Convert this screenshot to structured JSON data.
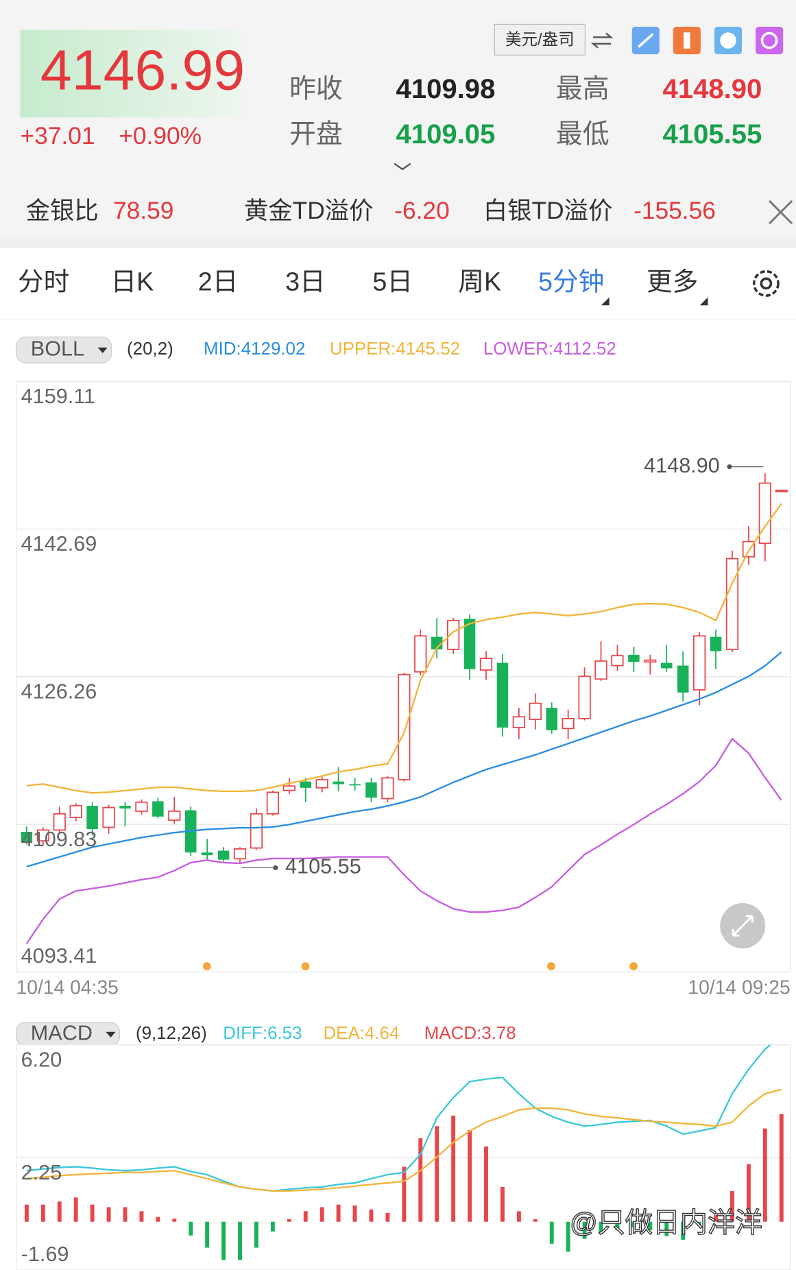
{
  "header": {
    "price": "4146.99",
    "change": "+37.01",
    "change_pct": "+0.90%",
    "unit": "美元/盎司",
    "stats": [
      {
        "label": "昨收",
        "value": "4109.98"
      },
      {
        "label": "最高",
        "value": "4148.90"
      },
      {
        "label": "开盘",
        "value": "4109.05"
      },
      {
        "label": "最低",
        "value": "4105.55"
      }
    ]
  },
  "ratios": [
    {
      "label": "金银比",
      "value": "78.59"
    },
    {
      "label": "黄金TD溢价",
      "value": "-6.20"
    },
    {
      "label": "白银TD溢价",
      "value": "-155.56"
    }
  ],
  "tabs": [
    "分时",
    "日K",
    "2日",
    "3日",
    "5日",
    "周K",
    "5分钟",
    "更多"
  ],
  "watermark": "@只做日内洋洋",
  "chart_data": [
    {
      "type": "candlestick",
      "indicator": "BOLL",
      "params": "(20,2)",
      "categories": [
        "10/14 04:35",
        null,
        null,
        null,
        null,
        null,
        null,
        null,
        null,
        null,
        null,
        null,
        null,
        null,
        null,
        null,
        null,
        null,
        null,
        null,
        null,
        null,
        null,
        null,
        null,
        null,
        null,
        null,
        null,
        null,
        null,
        null,
        null,
        null,
        null,
        null,
        null,
        null,
        null,
        null,
        null,
        null,
        null,
        null,
        null,
        null,
        "10/14 09:25"
      ],
      "ylim": [
        4093.41,
        4159.11
      ],
      "yticks": [
        4159.11,
        4142.69,
        4126.26,
        4109.83,
        4093.41
      ],
      "grid": true,
      "up_color": "#e8464a",
      "down_color": "#19b25a",
      "open": [
        4109.0,
        4108.0,
        4109.2,
        4110.6,
        4111.9,
        4109.5,
        4111.9,
        4111.3,
        4112.4,
        4110.3,
        4111.4,
        4106.7,
        4106.9,
        4106.0,
        4107.2,
        4111.0,
        4113.6,
        4114.6,
        4113.9,
        4114.6,
        4114.3,
        4114.5,
        4112.7,
        4114.8,
        4126.8,
        4130.7,
        4129.3,
        4132.7,
        4127.0,
        4127.8,
        4120.6,
        4121.5,
        4122.8,
        4120.5,
        4121.6,
        4126.0,
        4127.5,
        4128.7,
        4127.9,
        4127.8,
        4127.5,
        4124.8,
        4130.7,
        4129.3,
        4139.6,
        4141.1,
        4146.9
      ],
      "high": [
        4109.6,
        4109.5,
        4111.8,
        4112.2,
        4112.3,
        4112.0,
        4112.3,
        4112.6,
        4112.8,
        4112.9,
        4111.8,
        4108.2,
        4107.3,
        4107.3,
        4111.6,
        4113.6,
        4115.0,
        4115.0,
        4115.2,
        4116.2,
        4115.0,
        4115.0,
        4115.2,
        4126.7,
        4131.5,
        4132.8,
        4132.8,
        4133.2,
        4129.1,
        4128.8,
        4122.8,
        4124.4,
        4123.4,
        4122.6,
        4127.3,
        4130.2,
        4129.8,
        4129.6,
        4128.7,
        4129.8,
        4129.1,
        4131.2,
        4131.5,
        4140.3,
        4143.0,
        4148.9,
        4146.99
      ],
      "low": [
        4107.6,
        4107.5,
        4108.9,
        4110.2,
        4108.6,
        4108.8,
        4109.6,
        4110.9,
        4110.5,
        4109.9,
        4106.3,
        4105.9,
        4105.7,
        4105.55,
        4107.0,
        4110.8,
        4113.2,
        4112.3,
        4113.4,
        4113.5,
        4113.6,
        4112.3,
        4112.3,
        4114.6,
        4126.4,
        4128.3,
        4128.8,
        4125.9,
        4125.9,
        4119.6,
        4119.3,
        4120.4,
        4119.9,
        4119.3,
        4121.4,
        4125.8,
        4126.9,
        4126.8,
        4126.5,
        4126.8,
        4123.5,
        4123.1,
        4127.1,
        4129.0,
        4138.7,
        4139.1,
        4146.9
      ],
      "close": [
        4107.8,
        4109.2,
        4111.0,
        4111.9,
        4109.3,
        4111.7,
        4111.6,
        4112.3,
        4110.7,
        4111.3,
        4106.7,
        4106.4,
        4105.9,
        4107.1,
        4111.0,
        4113.4,
        4114.1,
        4113.9,
        4114.8,
        4114.3,
        4114.2,
        4112.8,
        4115.0,
        4126.5,
        4130.8,
        4129.3,
        4132.5,
        4127.1,
        4128.3,
        4120.6,
        4121.8,
        4123.3,
        4120.3,
        4121.6,
        4126.3,
        4128.0,
        4128.6,
        4127.9,
        4128.1,
        4127.2,
        4124.5,
        4130.8,
        4129.1,
        4139.4,
        4141.3,
        4147.8,
        4146.99
      ],
      "series": [
        {
          "name": "MID:4129.02",
          "color": "#2b8ee0",
          "values": [
            4105.13,
            4105.67,
            4106.21,
            4106.75,
            4107.29,
            4107.65,
            4108.01,
            4108.37,
            4108.64,
            4108.91,
            4109.09,
            4109.27,
            4109.36,
            4109.45,
            4109.45,
            4109.54,
            4109.81,
            4110.17,
            4110.53,
            4110.89,
            4111.25,
            4111.52,
            4111.88,
            4112.34,
            4112.88,
            4113.69,
            4114.5,
            4115.22,
            4115.94,
            4116.48,
            4117.02,
            4117.56,
            4118.19,
            4118.82,
            4119.45,
            4120.09,
            4120.72,
            4121.35,
            4121.89,
            4122.52,
            4123.15,
            4123.78,
            4124.5,
            4125.4,
            4126.3,
            4127.48,
            4129.02
          ]
        },
        {
          "name": "UPPER:4145.52",
          "color": "#f2b53c",
          "values": [
            4114.14,
            4114.32,
            4113.96,
            4113.6,
            4113.33,
            4113.42,
            4113.6,
            4113.78,
            4113.96,
            4113.96,
            4113.78,
            4113.6,
            4113.51,
            4113.51,
            4113.6,
            4113.96,
            4114.41,
            4114.77,
            4115.22,
            4115.67,
            4115.94,
            4116.3,
            4116.57,
            4120.0,
            4125.85,
            4129.46,
            4131.26,
            4132.16,
            4132.61,
            4132.88,
            4133.24,
            4133.42,
            4133.24,
            4133.06,
            4133.24,
            4133.51,
            4133.96,
            4134.32,
            4134.41,
            4134.32,
            4133.96,
            4133.42,
            4132.52,
            4136.67,
            4140.27,
            4142.98,
            4145.52
          ]
        },
        {
          "name": "LOWER:4112.52",
          "color": "#c85ee0",
          "values": [
            4096.56,
            4099.27,
            4101.52,
            4102.42,
            4102.69,
            4102.96,
            4103.32,
            4103.68,
            4103.95,
            4104.68,
            4105.58,
            4105.85,
            4105.58,
            4105.49,
            4105.85,
            4106.03,
            4106.03,
            4106.03,
            4106.12,
            4106.21,
            4106.21,
            4106.21,
            4106.21,
            4104.22,
            4102.42,
            4101.34,
            4100.44,
            4100.08,
            4100.08,
            4100.26,
            4100.62,
            4101.7,
            4102.87,
            4104.68,
            4106.48,
            4107.56,
            4108.73,
            4109.81,
            4110.98,
            4112.06,
            4113.24,
            4114.59,
            4116.39,
            4119.36,
            4117.74,
            4115.04,
            4112.52
          ]
        }
      ]
    },
    {
      "type": "macd",
      "indicator": "MACD",
      "params": "(9,12,26)",
      "ylim": [
        -1.69,
        6.2
      ],
      "yticks": [
        {
          "value": 6.2,
          "label": "6.20"
        },
        2.25,
        -1.69
      ],
      "grid": true,
      "series": [
        {
          "name": "DIFF:6.53",
          "color": "#3cc8d8",
          "values": [
            1.79,
            1.85,
            1.9,
            1.93,
            1.88,
            1.82,
            1.79,
            1.82,
            1.88,
            1.93,
            1.76,
            1.65,
            1.42,
            1.22,
            1.14,
            1.08,
            1.14,
            1.19,
            1.22,
            1.31,
            1.36,
            1.51,
            1.65,
            1.73,
            2.36,
            3.64,
            4.35,
            4.91,
            5.0,
            5.06,
            4.49,
            3.98,
            3.69,
            3.49,
            3.35,
            3.41,
            3.49,
            3.52,
            3.55,
            3.35,
            3.07,
            3.18,
            3.3,
            4.49,
            5.34,
            6.05,
            6.53
          ]
        },
        {
          "name": "DEA:4.64",
          "color": "#f2b53c",
          "values": [
            1.51,
            1.56,
            1.62,
            1.65,
            1.68,
            1.7,
            1.73,
            1.73,
            1.76,
            1.79,
            1.65,
            1.51,
            1.36,
            1.22,
            1.14,
            1.08,
            1.08,
            1.11,
            1.14,
            1.19,
            1.25,
            1.31,
            1.36,
            1.42,
            1.79,
            2.27,
            2.78,
            3.18,
            3.49,
            3.69,
            3.92,
            3.98,
            3.98,
            3.92,
            3.78,
            3.69,
            3.64,
            3.58,
            3.52,
            3.49,
            3.44,
            3.41,
            3.35,
            3.49,
            4.06,
            4.49,
            4.64
          ]
        },
        {
          "name": "MACD:3.78",
          "type": "bar",
          "up_color": "#e8464a",
          "down_color": "#19b25a",
          "values": [
            0.6,
            0.6,
            0.71,
            0.85,
            0.6,
            0.51,
            0.51,
            0.37,
            0.17,
            0.11,
            -0.48,
            -0.91,
            -1.34,
            -1.34,
            -0.91,
            -0.34,
            0.09,
            0.37,
            0.51,
            0.6,
            0.57,
            0.43,
            0.31,
            1.93,
            2.93,
            3.35,
            3.72,
            3.21,
            2.64,
            1.22,
            0.37,
            0.09,
            -0.77,
            -1.05,
            -0.6,
            -0.4,
            -0.3,
            -0.2,
            -0.3,
            -0.5,
            -0.63,
            -0.15,
            0.23,
            1.08,
            2.02,
            3.27,
            3.78
          ]
        }
      ]
    }
  ]
}
